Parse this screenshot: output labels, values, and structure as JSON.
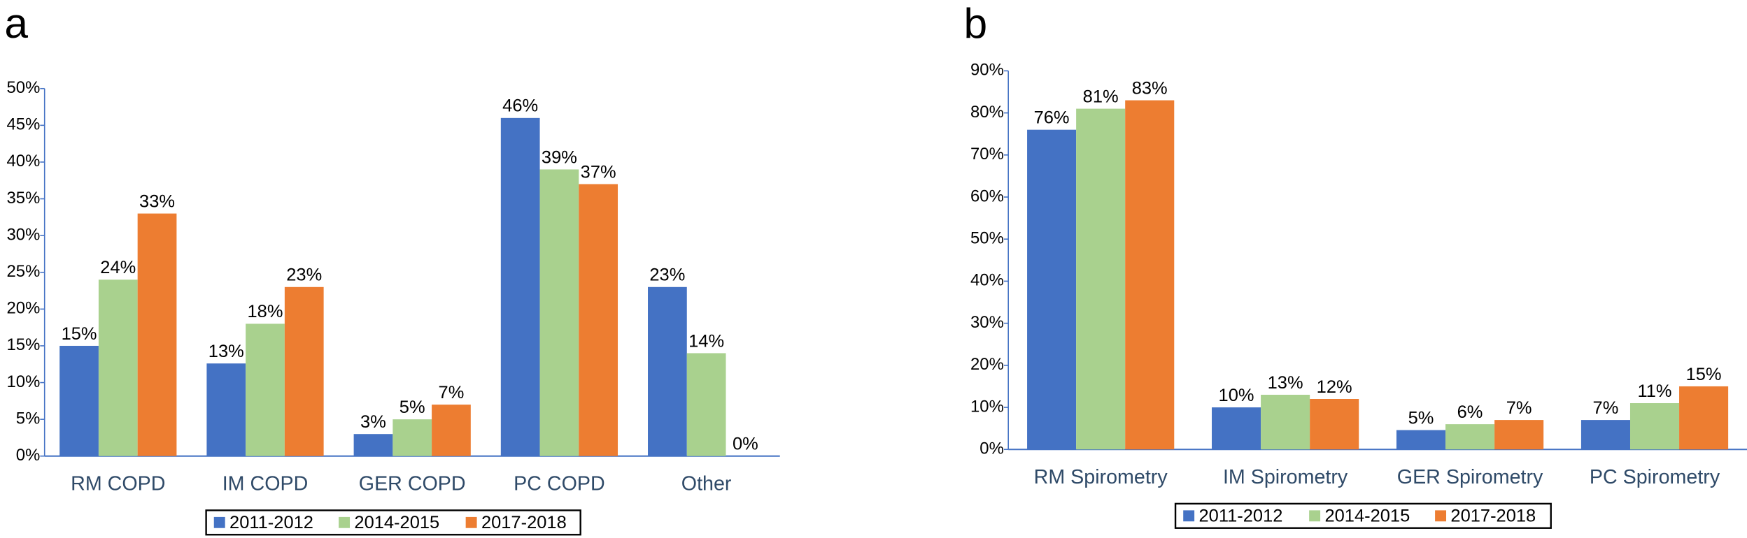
{
  "chart_data": [
    {
      "type": "bar",
      "panel_label": "a",
      "categories": [
        "RM COPD",
        "IM COPD",
        "GER COPD",
        "PC COPD",
        "Other"
      ],
      "series": [
        {
          "name": "2011-2012",
          "color": "#4472c4",
          "values": [
            15,
            12.6,
            3,
            46,
            23
          ],
          "value_labels": [
            "15%",
            "13%",
            "3%",
            "46%",
            "23%"
          ]
        },
        {
          "name": "2014-2015",
          "color": "#a9d18e",
          "values": [
            24,
            18,
            5,
            39,
            14
          ],
          "value_labels": [
            "24%",
            "18%",
            "5%",
            "39%",
            "14%"
          ]
        },
        {
          "name": "2017-2018",
          "color": "#ed7d31",
          "values": [
            33,
            23,
            7,
            37,
            0
          ],
          "value_labels": [
            "33%",
            "23%",
            "7%",
            "37%",
            "0%"
          ]
        }
      ],
      "ylim": [
        0,
        50
      ],
      "yticks": [
        {
          "value": 0,
          "label": "0%"
        },
        {
          "value": 5,
          "label": "5%"
        },
        {
          "value": 10,
          "label": "10%"
        },
        {
          "value": 15,
          "label": "15%"
        },
        {
          "value": 20,
          "label": "20%"
        },
        {
          "value": 25,
          "label": "25%"
        },
        {
          "value": 30,
          "label": "30%"
        },
        {
          "value": 35,
          "label": "35%"
        },
        {
          "value": 40,
          "label": "40%"
        },
        {
          "value": 45,
          "label": "45%"
        },
        {
          "value": 50,
          "label": "50%"
        }
      ],
      "grid": false
    },
    {
      "type": "bar",
      "panel_label": "b",
      "categories": [
        "RM Spirometry",
        "IM Spirometry",
        "GER Spirometry",
        "PC Spirometry"
      ],
      "series": [
        {
          "name": "2011-2012",
          "color": "#4472c4",
          "values": [
            76,
            10,
            4.6,
            7
          ],
          "value_labels": [
            "76%",
            "10%",
            "5%",
            "7%"
          ]
        },
        {
          "name": "2014-2015",
          "color": "#a9d18e",
          "values": [
            81,
            13,
            6,
            11
          ],
          "value_labels": [
            "81%",
            "13%",
            "6%",
            "11%"
          ]
        },
        {
          "name": "2017-2018",
          "color": "#ed7d31",
          "values": [
            83,
            12,
            7,
            15
          ],
          "value_labels": [
            "83%",
            "12%",
            "7%",
            "15%"
          ]
        }
      ],
      "ylim": [
        0,
        90
      ],
      "yticks": [
        {
          "value": 0,
          "label": "0%"
        },
        {
          "value": 10,
          "label": "10%"
        },
        {
          "value": 20,
          "label": "20%"
        },
        {
          "value": 30,
          "label": "30%"
        },
        {
          "value": 40,
          "label": "40%"
        },
        {
          "value": 50,
          "label": "50%"
        },
        {
          "value": 60,
          "label": "60%"
        },
        {
          "value": 70,
          "label": "70%"
        },
        {
          "value": 80,
          "label": "80%"
        },
        {
          "value": 90,
          "label": "90%"
        }
      ],
      "grid": false
    }
  ]
}
